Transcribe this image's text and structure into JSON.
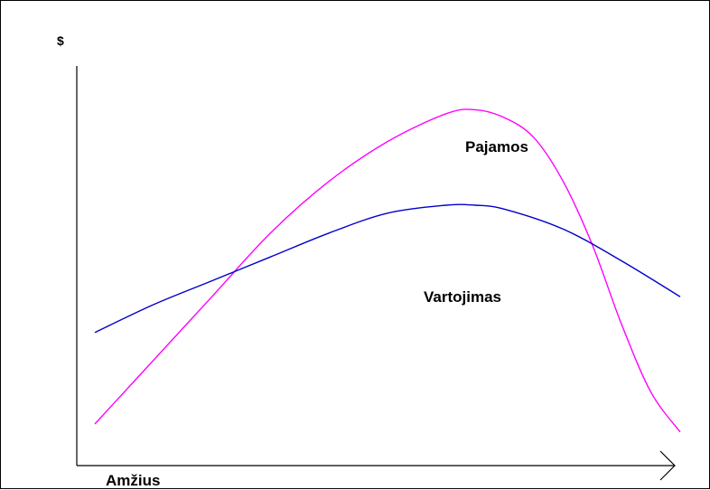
{
  "chart_data": {
    "type": "line",
    "ylabel": "$",
    "xlabel": "Amžius",
    "grid": false,
    "legend": "none",
    "axes_scale": "unlabeled",
    "x_range": [
      0,
      100
    ],
    "y_range": [
      0,
      100
    ],
    "series": [
      {
        "name": "Pajamos",
        "color": "#ff00ff",
        "x": [
          0,
          10,
          20,
          30,
          40,
          50,
          60,
          65,
          70,
          75,
          80,
          85,
          90,
          95,
          100
        ],
        "y": [
          10,
          26,
          42,
          58,
          71,
          81,
          88,
          89,
          87,
          82,
          71,
          55,
          35,
          18,
          8
        ]
      },
      {
        "name": "Vartojimas",
        "color": "#0000cc",
        "x": [
          0,
          10,
          20,
          30,
          40,
          50,
          60,
          65,
          70,
          80,
          90,
          100
        ],
        "y": [
          33,
          40,
          46,
          52,
          58,
          63,
          65,
          65,
          64,
          59,
          51,
          42
        ]
      }
    ]
  }
}
